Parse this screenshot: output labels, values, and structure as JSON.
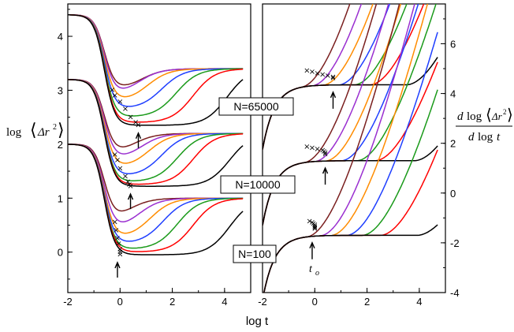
{
  "chart_data": [
    {
      "type": "line",
      "panel": "left",
      "xlabel": "log t",
      "ylabel": "log⟨Δr²⟩",
      "xlim": [
        -2,
        5
      ],
      "ylim": [
        -0.75,
        4.6
      ],
      "x_ticks": [
        "-2",
        "0",
        "2",
        "4"
      ],
      "y_ticks": [
        "0",
        "1",
        "2",
        "3",
        "4"
      ],
      "groups": [
        {
          "label": "N=65000",
          "offset": 3.0,
          "start": 4.4,
          "colors": [
            "#7a1f1f",
            "#9a2fd0",
            "#ff8c00",
            "#1f3fff",
            "#1a9a1a",
            "#ff0000",
            "#000000"
          ],
          "plateau_ends": [
            1.2,
            1.1,
            1.45,
            2.0,
            2.55,
            3.2,
            4.5
          ],
          "minima": [
            0.0,
            -0.1,
            -0.22,
            -0.35,
            -0.5,
            -0.6,
            -0.65
          ],
          "min_x": [
            -0.3,
            -0.2,
            -0.05,
            0.1,
            0.3,
            0.5,
            0.6
          ],
          "plateau": 0.4,
          "markers_x": [
            -0.3,
            -0.2,
            0.0,
            0.2,
            0.4,
            0.6,
            0.7
          ],
          "arrow_x": 0.7
        },
        {
          "label": "N=10000",
          "offset": 2.0,
          "start": 3.2,
          "colors": [
            "#7a1f1f",
            "#9a2fd0",
            "#ff8c00",
            "#1f3fff",
            "#1a9a1a",
            "#ff0000",
            "#000000"
          ],
          "plateau_ends": [
            0.9,
            1.2,
            1.5,
            2.0,
            2.6,
            3.2,
            4.6
          ],
          "minima": [
            -0.2,
            -0.3,
            -0.45,
            -0.6,
            -0.7,
            -0.75,
            -0.78
          ],
          "min_x": [
            -0.2,
            -0.1,
            0.05,
            0.2,
            0.3,
            0.4,
            0.5
          ],
          "plateau": 0.2,
          "markers_x": [
            -0.2,
            -0.1,
            0.0,
            0.2,
            0.3,
            0.35,
            0.4
          ],
          "arrow_x": 0.4
        },
        {
          "label": "N=100",
          "offset": 0.0,
          "start": 2.0,
          "colors": [
            "#7a1f1f",
            "#9a2fd0",
            "#ff8c00",
            "#1f3fff",
            "#1a9a1a",
            "#ff0000",
            "#000000"
          ],
          "plateau_ends": [
            0.7,
            1.1,
            1.55,
            2.05,
            2.6,
            3.2,
            4.6
          ],
          "minima": [
            0.55,
            0.4,
            0.25,
            0.15,
            0.05,
            0.0,
            -0.05
          ],
          "min_x": [
            -0.2,
            -0.1,
            0.0,
            0.1,
            0.2,
            0.2,
            0.2
          ],
          "plateau": 1.0,
          "markers_x": [
            -0.2,
            -0.15,
            -0.1,
            -0.05,
            0.0,
            0.0,
            0.0
          ],
          "arrow_x": -0.1
        }
      ]
    },
    {
      "type": "line",
      "panel": "right",
      "xlabel": "log t",
      "ylabel": "d log⟨Δr²⟩ / d log t",
      "xlim": [
        -2,
        5
      ],
      "ylim": [
        -4,
        7.6
      ],
      "x_ticks": [
        "-2",
        "0",
        "2",
        "4"
      ],
      "y_ticks": [
        "-4",
        "-2",
        "0",
        "2",
        "4",
        "6"
      ],
      "groups": [
        {
          "label": "N=65000",
          "base": 4.35,
          "colors": [
            "#7a1f1f",
            "#9a2fd0",
            "#ff8c00",
            "#1f3fff",
            "#1a9a1a",
            "#ff0000",
            "#000000"
          ],
          "takeoff": [
            -0.5,
            -0.1,
            0.3,
            0.9,
            1.5,
            2.1,
            3.5
          ],
          "slope": [
            1.4,
            1.35,
            1.3,
            1.25,
            1.2,
            1.15,
            1.0
          ],
          "markers_x": [
            -0.3,
            -0.1,
            0.1,
            0.3,
            0.5,
            0.7,
            0.7
          ],
          "arrow_x": 0.7
        },
        {
          "label": "N=10000",
          "base": 1.3,
          "colors": [
            "#7a1f1f",
            "#9a2fd0",
            "#ff8c00",
            "#1f3fff",
            "#1a9a1a",
            "#ff0000",
            "#000000"
          ],
          "takeoff": [
            -0.4,
            0.0,
            0.4,
            1.0,
            1.6,
            2.3,
            3.8
          ],
          "slope": [
            1.4,
            1.35,
            1.3,
            1.25,
            1.2,
            1.1,
            0.9
          ],
          "markers_x": [
            -0.3,
            -0.1,
            0.1,
            0.3,
            0.35,
            0.4,
            0.4
          ],
          "arrow_x": 0.4
        },
        {
          "label": "N=100",
          "base": -1.7,
          "colors": [
            "#7a1f1f",
            "#9a2fd0",
            "#ff8c00",
            "#1f3fff",
            "#1a9a1a",
            "#ff0000",
            "#000000"
          ],
          "takeoff": [
            -0.3,
            0.2,
            0.6,
            1.2,
            1.8,
            2.5,
            3.9
          ],
          "slope": [
            1.4,
            1.35,
            1.3,
            1.25,
            1.2,
            1.1,
            0.8
          ],
          "markers_x": [
            -0.2,
            -0.1,
            -0.05,
            0.0,
            0.0,
            0.0,
            0.0
          ],
          "arrow_x": -0.1
        }
      ]
    }
  ],
  "labels": {
    "n65000": "N=65000",
    "n10000": "N=10000",
    "n100": "N=100",
    "t_o": "t",
    "t_o_sub": "o",
    "x_axis_title": "log t"
  }
}
